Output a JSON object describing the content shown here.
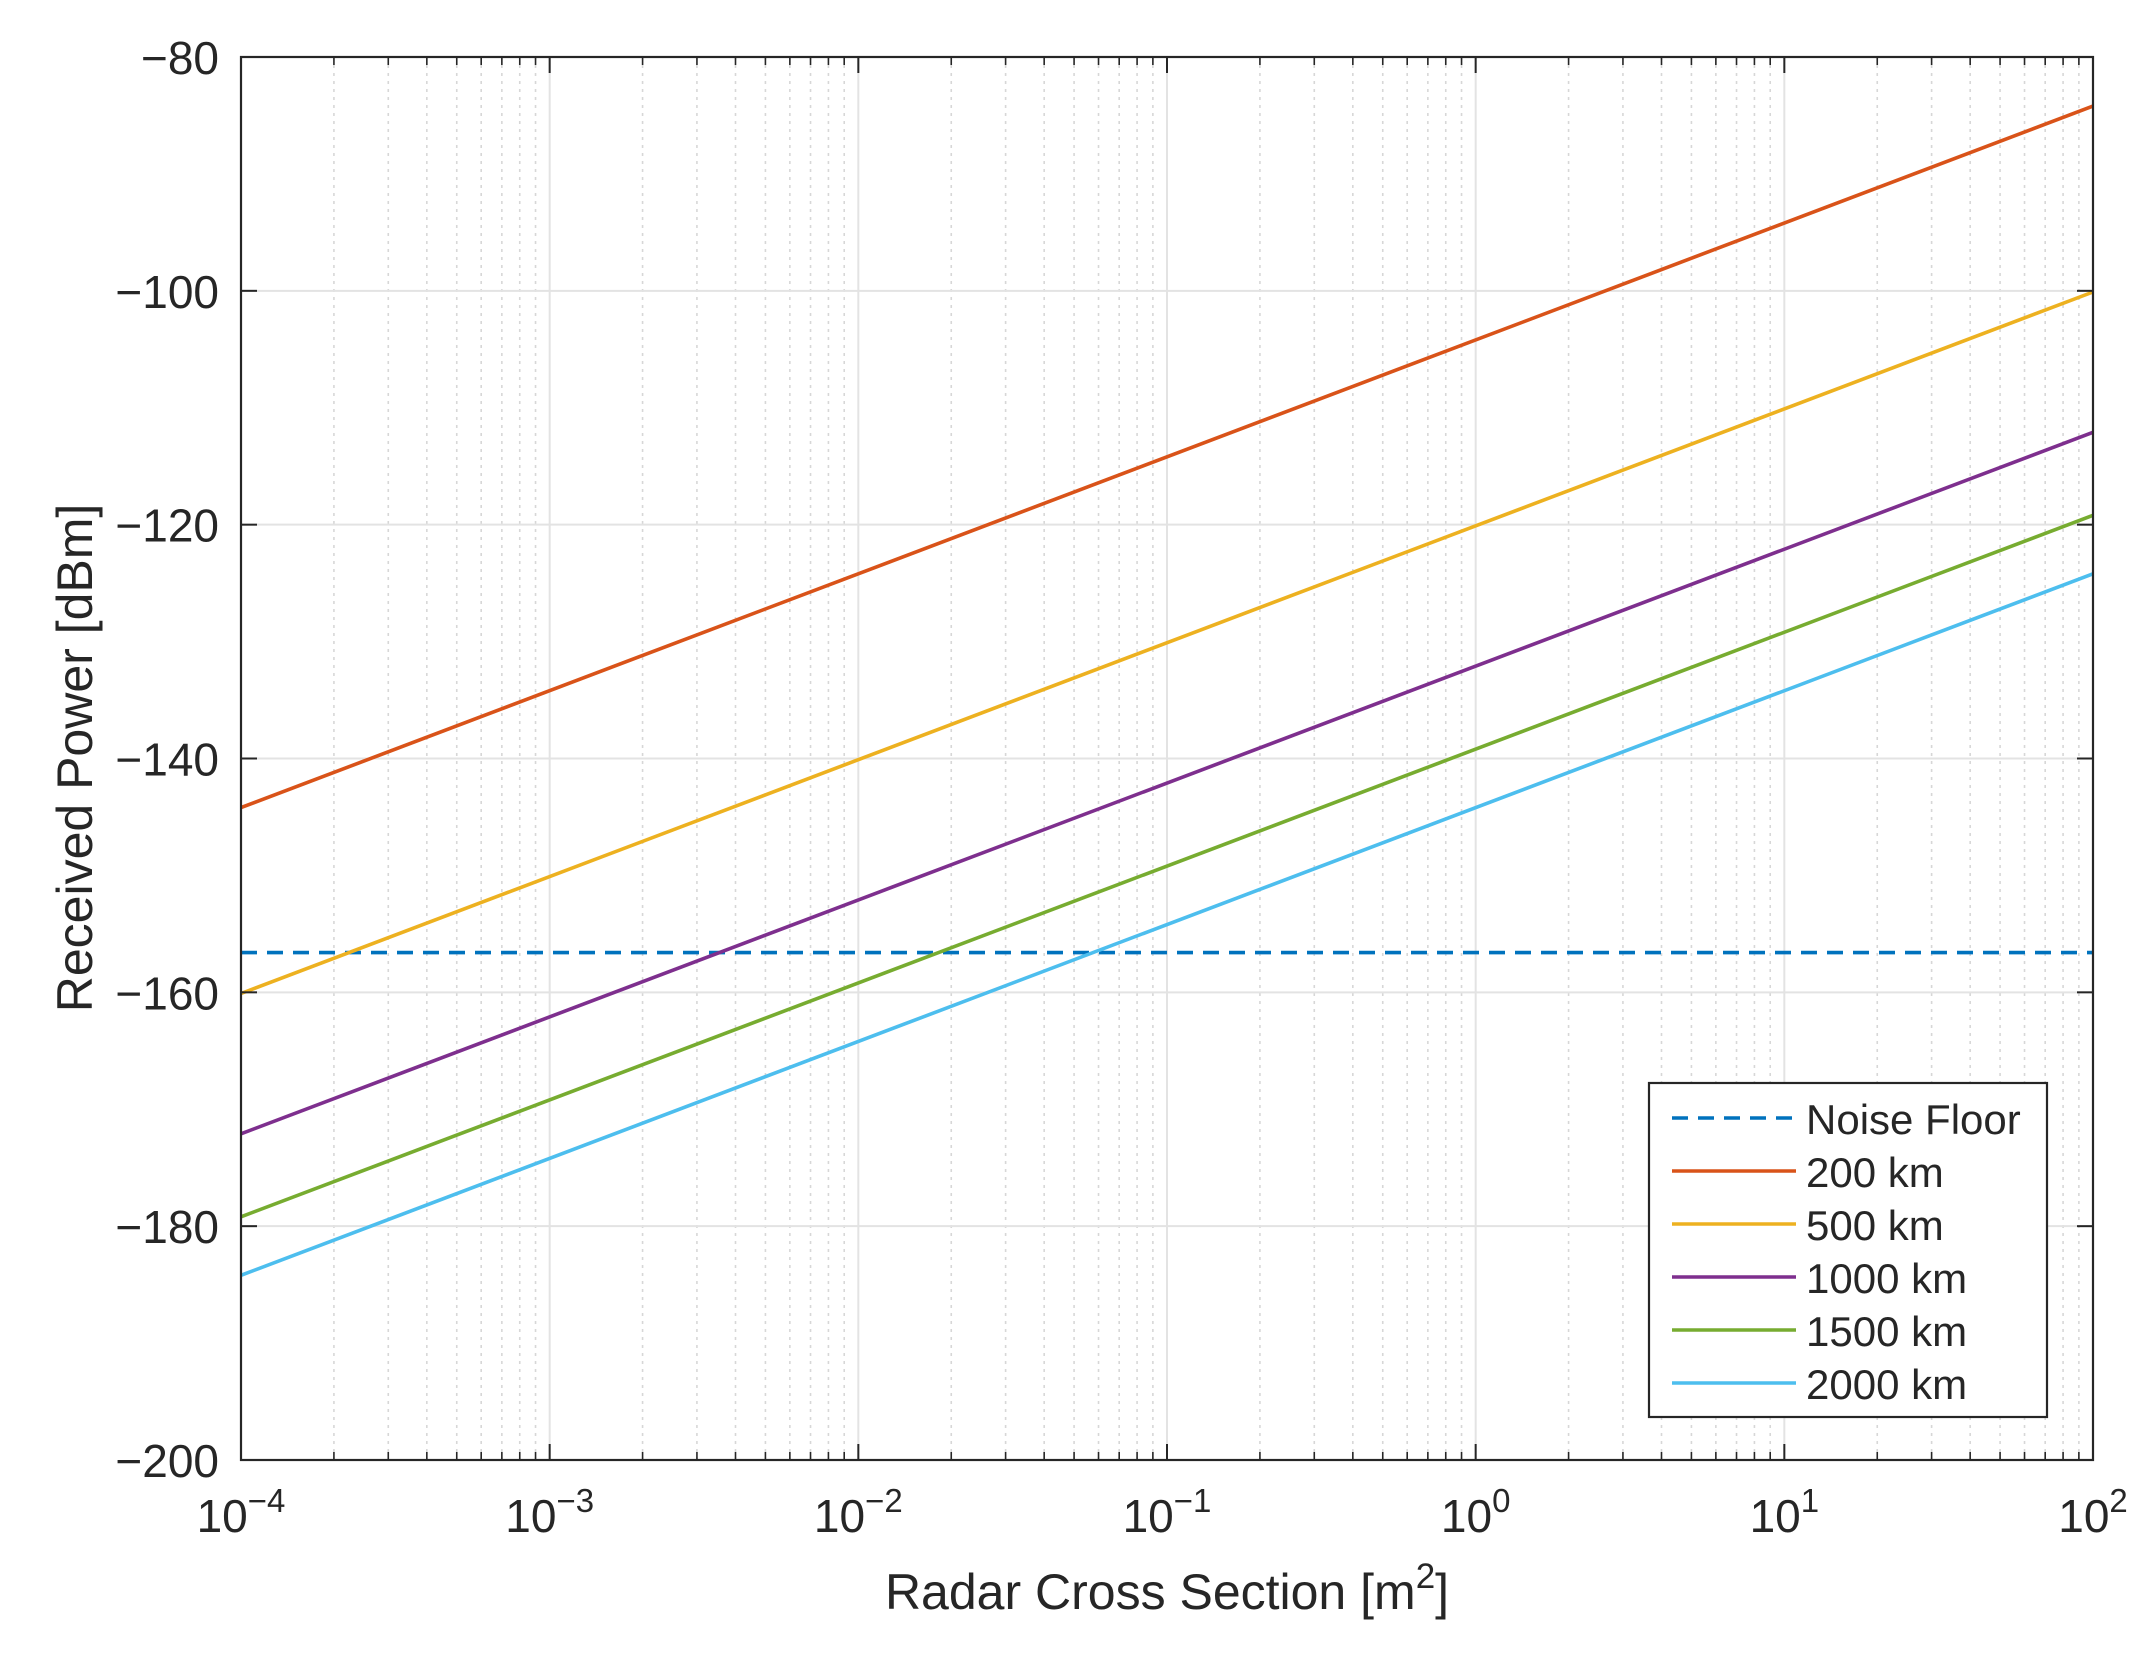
{
  "chart_data": {
    "type": "line",
    "xscale": "log",
    "xlabel": "Radar Cross Section [m",
    "xlabel_superscript": "2",
    "xlabel_suffix": "]",
    "ylabel": "Received Power [dBm]",
    "xlim": [
      0.0001,
      100
    ],
    "ylim": [
      -200,
      -80
    ],
    "grid": true,
    "minor_grid": true,
    "legend_position": "bottom-right",
    "x_ticks": [
      {
        "value": 0.0001,
        "base": "10",
        "exp": "−4"
      },
      {
        "value": 0.001,
        "base": "10",
        "exp": "−3"
      },
      {
        "value": 0.01,
        "base": "10",
        "exp": "−2"
      },
      {
        "value": 0.1,
        "base": "10",
        "exp": "−1"
      },
      {
        "value": 1,
        "base": "10",
        "exp": "0"
      },
      {
        "value": 10,
        "base": "10",
        "exp": "1"
      },
      {
        "value": 100,
        "base": "10",
        "exp": "2"
      }
    ],
    "y_ticks": [
      {
        "value": -80,
        "label": "−80"
      },
      {
        "value": -100,
        "label": "−100"
      },
      {
        "value": -120,
        "label": "−120"
      },
      {
        "value": -140,
        "label": "−140"
      },
      {
        "value": -160,
        "label": "−160"
      },
      {
        "value": -180,
        "label": "−180"
      },
      {
        "value": -200,
        "label": "−200"
      }
    ],
    "series": [
      {
        "name": "Noise Floor",
        "color": "#0072BD",
        "dash": true,
        "x": [
          0.0001,
          100
        ],
        "y": [
          -156.6,
          -156.6
        ]
      },
      {
        "name": "200 km",
        "color": "#D95319",
        "dash": false,
        "x": [
          0.0001,
          100
        ],
        "y": [
          -144.2,
          -84.2
        ]
      },
      {
        "name": "500 km",
        "color": "#EDB120",
        "dash": false,
        "x": [
          0.0001,
          100
        ],
        "y": [
          -160.1,
          -100.1
        ]
      },
      {
        "name": "1000 km",
        "color": "#7E2F8E",
        "dash": false,
        "x": [
          0.0001,
          100
        ],
        "y": [
          -172.1,
          -112.1
        ]
      },
      {
        "name": "1500 km",
        "color": "#77AC30",
        "dash": false,
        "x": [
          0.0001,
          100
        ],
        "y": [
          -179.2,
          -119.2
        ]
      },
      {
        "name": "2000 km",
        "color": "#4DBEEE",
        "dash": false,
        "x": [
          0.0001,
          100
        ],
        "y": [
          -184.2,
          -124.2
        ]
      }
    ]
  }
}
